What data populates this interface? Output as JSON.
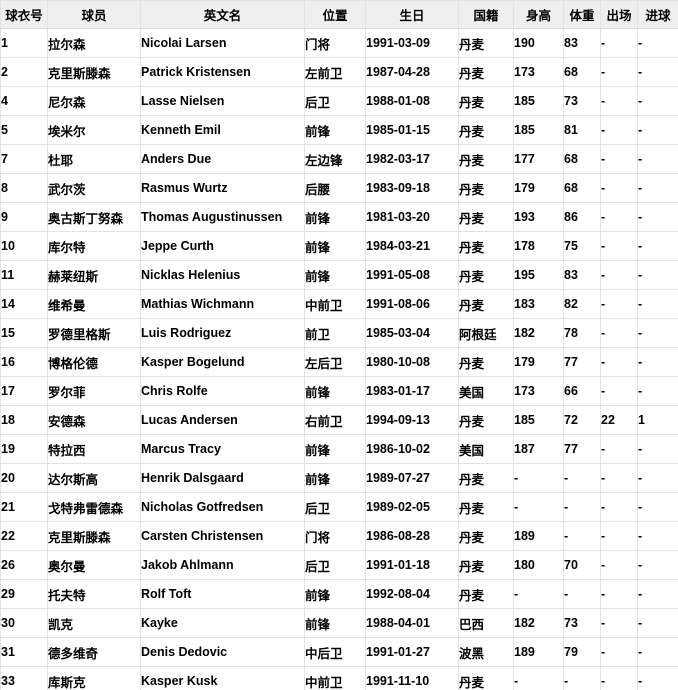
{
  "colors": {
    "header_bg": "#efefef",
    "border": "#e3e3e3",
    "header_border": "#dcdcdc",
    "text": "#000000",
    "row_bg": "#ffffff"
  },
  "table": {
    "columns": [
      {
        "key": "jersey",
        "label": "球衣号"
      },
      {
        "key": "player",
        "label": "球员"
      },
      {
        "key": "name_en",
        "label": "英文名"
      },
      {
        "key": "position",
        "label": "位置"
      },
      {
        "key": "birthday",
        "label": "生日"
      },
      {
        "key": "nationality",
        "label": "国籍"
      },
      {
        "key": "height",
        "label": "身高"
      },
      {
        "key": "weight",
        "label": "体重"
      },
      {
        "key": "appearances",
        "label": "出场"
      },
      {
        "key": "goals",
        "label": "进球"
      }
    ],
    "rows": [
      [
        "1",
        "拉尔森",
        "Nicolai Larsen",
        "门将",
        "1991-03-09",
        "丹麦",
        "190",
        "83",
        "-",
        "-"
      ],
      [
        "2",
        "克里斯滕森",
        "Patrick Kristensen",
        "左前卫",
        "1987-04-28",
        "丹麦",
        "173",
        "68",
        "-",
        "-"
      ],
      [
        "4",
        "尼尔森",
        "Lasse Nielsen",
        "后卫",
        "1988-01-08",
        "丹麦",
        "185",
        "73",
        "-",
        "-"
      ],
      [
        "5",
        "埃米尔",
        "Kenneth Emil",
        "前锋",
        "1985-01-15",
        "丹麦",
        "185",
        "81",
        "-",
        "-"
      ],
      [
        "7",
        "杜耶",
        "Anders Due",
        "左边锋",
        "1982-03-17",
        "丹麦",
        "177",
        "68",
        "-",
        "-"
      ],
      [
        "8",
        "武尔茨",
        "Rasmus Wurtz",
        "后腰",
        "1983-09-18",
        "丹麦",
        "179",
        "68",
        "-",
        "-"
      ],
      [
        "9",
        "奥古斯丁努森",
        "Thomas Augustinussen",
        "前锋",
        "1981-03-20",
        "丹麦",
        "193",
        "86",
        "-",
        "-"
      ],
      [
        "10",
        "库尔特",
        "Jeppe Curth",
        "前锋",
        "1984-03-21",
        "丹麦",
        "178",
        "75",
        "-",
        "-"
      ],
      [
        "11",
        "赫莱纽斯",
        "Nicklas Helenius",
        "前锋",
        "1991-05-08",
        "丹麦",
        "195",
        "83",
        "-",
        "-"
      ],
      [
        "14",
        "维希曼",
        "Mathias Wichmann",
        "中前卫",
        "1991-08-06",
        "丹麦",
        "183",
        "82",
        "-",
        "-"
      ],
      [
        "15",
        "罗德里格斯",
        "Luis Rodriguez",
        "前卫",
        "1985-03-04",
        "阿根廷",
        "182",
        "78",
        "-",
        "-"
      ],
      [
        "16",
        "博格伦德",
        "Kasper Bogelund",
        "左后卫",
        "1980-10-08",
        "丹麦",
        "179",
        "77",
        "-",
        "-"
      ],
      [
        "17",
        "罗尔菲",
        "Chris Rolfe",
        "前锋",
        "1983-01-17",
        "美国",
        "173",
        "66",
        "-",
        "-"
      ],
      [
        "18",
        "安德森",
        "Lucas Andersen",
        "右前卫",
        "1994-09-13",
        "丹麦",
        "185",
        "72",
        "22",
        "1"
      ],
      [
        "19",
        "特拉西",
        "Marcus Tracy",
        "前锋",
        "1986-10-02",
        "美国",
        "187",
        "77",
        "-",
        "-"
      ],
      [
        "20",
        "达尔斯高",
        "Henrik Dalsgaard",
        "前锋",
        "1989-07-27",
        "丹麦",
        "-",
        "-",
        "-",
        "-"
      ],
      [
        "21",
        "戈特弗雷德森",
        "Nicholas Gotfredsen",
        "后卫",
        "1989-02-05",
        "丹麦",
        "-",
        "-",
        "-",
        "-"
      ],
      [
        "22",
        "克里斯滕森",
        "Carsten Christensen",
        "门将",
        "1986-08-28",
        "丹麦",
        "189",
        "-",
        "-",
        "-"
      ],
      [
        "26",
        "奥尔曼",
        "Jakob Ahlmann",
        "后卫",
        "1991-01-18",
        "丹麦",
        "180",
        "70",
        "-",
        "-"
      ],
      [
        "29",
        "托夫特",
        "Rolf Toft",
        "前锋",
        "1992-08-04",
        "丹麦",
        "-",
        "-",
        "-",
        "-"
      ],
      [
        "30",
        "凯克",
        "Kayke",
        "前锋",
        "1988-04-01",
        "巴西",
        "182",
        "73",
        "-",
        "-"
      ],
      [
        "31",
        "德多维奇",
        "Denis Dedovic",
        "中后卫",
        "1991-01-27",
        "波黑",
        "189",
        "79",
        "-",
        "-"
      ],
      [
        "33",
        "库斯克",
        "Kasper Kusk",
        "中前卫",
        "1991-11-10",
        "丹麦",
        "-",
        "-",
        "-",
        "-"
      ]
    ]
  }
}
